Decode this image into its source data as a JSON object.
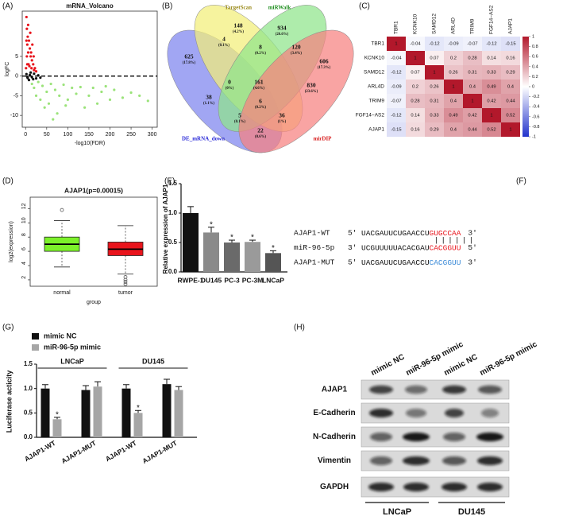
{
  "volcano": {
    "label": "(A)",
    "title": "mRNA_Volcano",
    "xlabel": "-log10(FDR)",
    "ylabel": "logFC",
    "xlim": [
      -8,
      312
    ],
    "ylim": [
      -13,
      16.5
    ],
    "xticks": [
      0,
      50,
      100,
      150,
      200,
      250,
      300
    ],
    "yticks": [
      -10,
      -5,
      0,
      5
    ],
    "hline": 0,
    "series": [
      {
        "color": "#e8141c",
        "x": [
          2,
          3,
          5,
          4,
          8,
          10,
          6,
          12,
          15,
          3,
          7,
          9,
          14,
          18,
          20,
          22,
          25,
          11,
          2,
          13,
          16,
          6,
          4,
          1,
          19
        ],
        "y": [
          15,
          12,
          10,
          8,
          9,
          7,
          6,
          5,
          4,
          5,
          3,
          2.5,
          2,
          3,
          1.5,
          2,
          1.2,
          11,
          9,
          6,
          8,
          13,
          3,
          2,
          5
        ]
      },
      {
        "color": "#111111",
        "x": [
          2,
          5,
          10,
          15,
          20,
          25,
          30,
          8,
          12,
          35,
          18,
          4
        ],
        "y": [
          0.5,
          -0.5,
          0.3,
          -0.3,
          0.6,
          -0.6,
          0.2,
          -1,
          0.9,
          -0.4,
          -0.8,
          -0.2
        ]
      },
      {
        "color": "#9be37a",
        "x": [
          15,
          20,
          30,
          40,
          50,
          60,
          70,
          80,
          90,
          100,
          110,
          120,
          130,
          150,
          160,
          170,
          180,
          200,
          210,
          230,
          250,
          270,
          290,
          45,
          75,
          55,
          25,
          35,
          65,
          140,
          95,
          190
        ],
        "y": [
          -2,
          -3,
          -1.5,
          -2.5,
          -4,
          -2,
          -3.5,
          -5,
          -2.2,
          -6,
          -3,
          -4.5,
          -2.8,
          -5,
          -3,
          -7,
          -4,
          -6,
          -3.5,
          -5.5,
          -4.2,
          -5,
          -6.3,
          -8,
          -9.5,
          -7,
          -5,
          -6,
          -11,
          -8,
          -7.5,
          -2.6
        ]
      }
    ]
  },
  "venn": {
    "label": "(B)",
    "sets": [
      {
        "name": "DE_mRNA_down",
        "color": "#7d83ee",
        "text_color": "#2a2ad8"
      },
      {
        "name": "TargetScan",
        "color": "#f3ee78",
        "text_color": "#9a8a1a"
      },
      {
        "name": "miRWalk",
        "color": "#8fe58b",
        "text_color": "#229022"
      },
      {
        "name": "mirDIP",
        "color": "#f7817f",
        "text_color": "#d82020"
      }
    ],
    "regions": [
      {
        "count": "625",
        "percent": "(17.8%)"
      },
      {
        "count": "4",
        "percent": "(0.1%)"
      },
      {
        "count": "148",
        "percent": "(4.2%)"
      },
      {
        "count": "8",
        "percent": "(0.2%)"
      },
      {
        "count": "934",
        "percent": "(26.6%)"
      },
      {
        "count": "120",
        "percent": "(3.4%)"
      },
      {
        "count": "606",
        "percent": "(17.3%)"
      },
      {
        "count": "0",
        "percent": "(0%)"
      },
      {
        "count": "161",
        "percent": "(4.6%)"
      },
      {
        "count": "830",
        "percent": "(23.6%)"
      },
      {
        "count": "38",
        "percent": "(1.1%)"
      },
      {
        "count": "6",
        "percent": "(0.2%)"
      },
      {
        "count": "36",
        "percent": "(1%)"
      },
      {
        "count": "5",
        "percent": "(0.1%)"
      },
      {
        "count": "22",
        "percent": "(0.6%)"
      }
    ]
  },
  "heatmap": {
    "label": "(C)",
    "names": [
      "TBR1",
      "KCNK10",
      "SAMD12",
      "ARL4D",
      "TRIM9",
      "FGF14−AS2",
      "AJAP1"
    ],
    "matrix": [
      [
        1,
        -0.04,
        -0.12,
        -0.09,
        -0.07,
        -0.12,
        -0.15
      ],
      [
        -0.04,
        1,
        0.07,
        0.2,
        0.28,
        0.14,
        0.16
      ],
      [
        -0.12,
        0.07,
        1,
        0.26,
        0.31,
        0.33,
        0.29
      ],
      [
        -0.09,
        0.2,
        0.26,
        1,
        0.4,
        0.49,
        0.4
      ],
      [
        -0.07,
        0.28,
        0.31,
        0.4,
        1,
        0.42,
        0.44
      ],
      [
        -0.12,
        0.14,
        0.33,
        0.49,
        0.42,
        1,
        0.52
      ],
      [
        -0.15,
        0.16,
        0.29,
        0.4,
        0.44,
        0.52,
        1
      ]
    ],
    "colorbar": {
      "lim": [
        -1,
        1
      ],
      "ticks": [
        1,
        0.8,
        0.6,
        0.4,
        0.2,
        0,
        -0.2,
        -0.4,
        -0.6,
        -0.8,
        -1
      ],
      "high": "#b2182b",
      "low": "#2233cc"
    }
  },
  "boxplot": {
    "label": "(D)",
    "title": "AJAP1(p=0.00015)",
    "ylabel": "log2(expression)",
    "xlabel": "group",
    "categories": [
      "normal",
      "tumor"
    ],
    "ylim": [
      1.1,
      13.6
    ],
    "yticks": [
      2,
      4,
      6,
      8,
      10,
      12
    ],
    "boxes": [
      {
        "color": "#7cf12a",
        "whisker_low": 3.8,
        "q1": 6.0,
        "median": 7.0,
        "q3": 8.0,
        "whisker_high": 10.3,
        "outliers": [
          11.8
        ]
      },
      {
        "color": "#e8141c",
        "whisker_low": 2.8,
        "q1": 5.4,
        "median": 6.3,
        "q3": 7.3,
        "whisker_high": 9.6,
        "outliers": [
          2.4,
          2.0,
          1.7,
          1.4
        ]
      }
    ]
  },
  "bar": {
    "label": "(E)",
    "ylabel": "Relative expression of AJAP1",
    "categories": [
      "RWPE-1",
      "DU145",
      "PC-3",
      "PC-3M",
      "LNCaP"
    ],
    "values": [
      1.0,
      0.67,
      0.5,
      0.51,
      0.32
    ],
    "errors": [
      0.11,
      0.09,
      0.04,
      0.03,
      0.04
    ],
    "colors": [
      "#111111",
      "#8a8a8a",
      "#6a6a6a",
      "#9a9a9a",
      "#555555"
    ],
    "stars": [
      null,
      "*",
      "*",
      "*",
      "*"
    ],
    "ylim": [
      0,
      1.5
    ],
    "yticks": [
      {
        "value": 0,
        "label": "0.0"
      },
      {
        "value": 0.5,
        "label": "0.5"
      },
      {
        "value": 1,
        "label": "1.0"
      },
      {
        "value": 1.5,
        "label": "1.5"
      }
    ]
  },
  "sequences": {
    "label": "(F)",
    "pairing": "||||||",
    "rows": [
      {
        "name": "AJAP1-WT",
        "left": "5'",
        "seq": "UACGAUUCUGAACCU",
        "site": "GUGCCAA",
        "right": "3'",
        "site_color": "#e8141c"
      },
      {
        "name": "miR-96-5p",
        "left": "3'",
        "seq": "UCGUUUUUACACGAU",
        "site": "CACGGUU",
        "right": "5'",
        "site_color": "#e8141c"
      },
      {
        "name": "AJAP1-MUT",
        "left": "5'",
        "seq": "UACGAUUCUGAACCU",
        "site": "CACGGUU",
        "right": "3'",
        "site_color": "#3a8ad8"
      }
    ]
  },
  "luciferase": {
    "label": "(G)",
    "ylabel": "Luciferase acticity",
    "categories": [
      "AJAP1-WT",
      "AJAP1-MUT",
      "AJAP1-WT",
      "AJAP1-MUT"
    ],
    "groups": [
      {
        "name": "LNCaP",
        "from": 0,
        "to": 1
      },
      {
        "name": "DU145",
        "from": 2,
        "to": 3
      }
    ],
    "ylim": [
      0,
      1.5
    ],
    "yticks": [
      {
        "value": 0,
        "label": "0.0"
      },
      {
        "value": 0.5,
        "label": "0.5"
      },
      {
        "value": 1,
        "label": "1.0"
      },
      {
        "value": 1.5,
        "label": "1.5"
      }
    ],
    "series": [
      {
        "name": "mimic NC",
        "color": "#111111",
        "values": [
          1.0,
          0.97,
          1.0,
          1.09
        ],
        "errors": [
          0.08,
          0.09,
          0.08,
          0.1
        ],
        "stars": [
          null,
          null,
          null,
          null
        ]
      },
      {
        "name": "miR-96-5p mimic",
        "color": "#a6a6a6",
        "values": [
          0.37,
          1.04,
          0.5,
          0.97
        ],
        "errors": [
          0.04,
          0.1,
          0.05,
          0.07
        ],
        "stars": [
          "*",
          null,
          "*",
          null
        ]
      }
    ]
  },
  "western": {
    "label": "(H)",
    "lanes": [
      "mimic NC",
      "miR-96-5p mimic",
      "mimic NC",
      "miR-96-5p mimic"
    ],
    "proteins": [
      "AJAP1",
      "E-Cadherin",
      "N-Cadherin",
      "Vimentin",
      "GAPDH"
    ],
    "cell_lines": [
      "LNCaP",
      "DU145"
    ]
  }
}
